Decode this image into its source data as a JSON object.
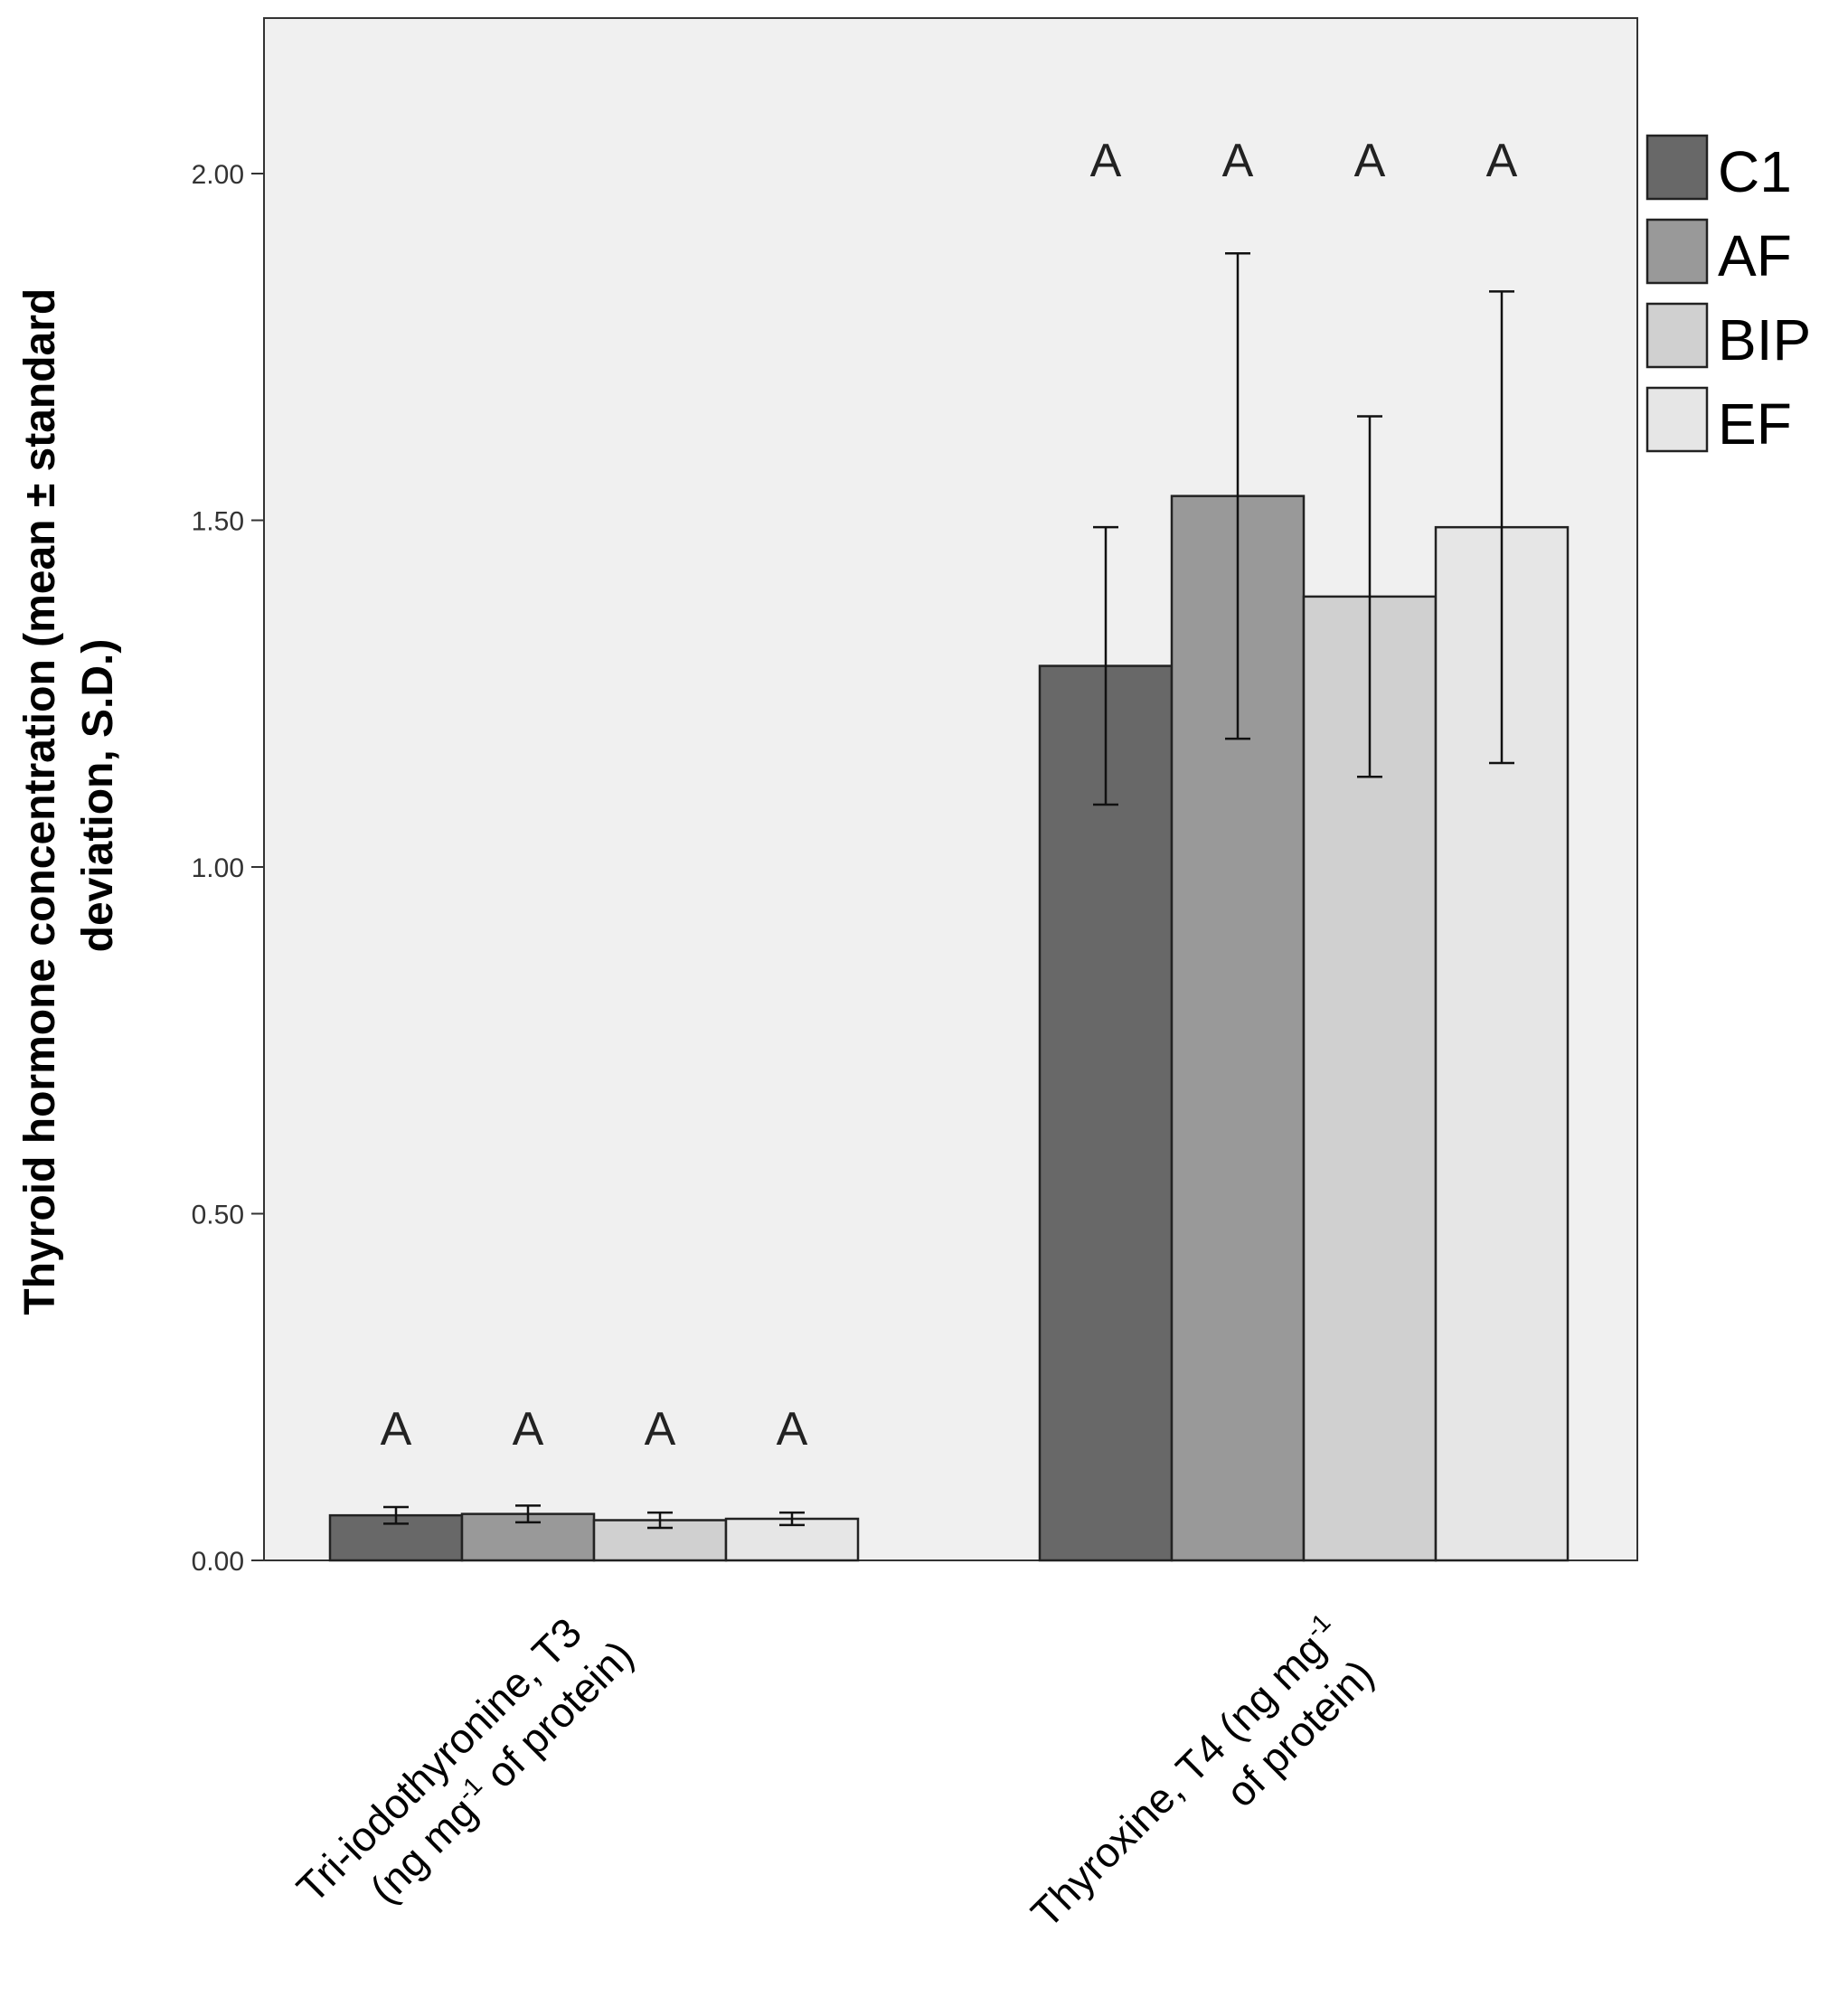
{
  "chart_data": {
    "type": "bar",
    "title": "",
    "ylabel_lines": [
      "Thyroid hormone concentration (mean ± standard",
      "deviation, S.D.)"
    ],
    "ylim": [
      0,
      2.22
    ],
    "yticks": [
      0,
      0.5,
      1.0,
      1.5,
      2.0
    ],
    "ytick_labels": [
      "0.00",
      "0.50",
      "1.00",
      "1.50",
      "2.00"
    ],
    "grid": false,
    "legend_position": "right-top",
    "categories": [
      {
        "name": "Tri-iodothyronine, T3 (ng mg-1 of protein)",
        "line1": "Tri-iodothyronine, T3",
        "line2_pre": "(ng mg",
        "line2_sup": "-1",
        "line2_post": " of protein)"
      },
      {
        "name": "Thyroxine, T4 (ng mg-1 of protein)",
        "line1_pre": "Thyroxine, T4 (ng mg",
        "line1_sup": "-1",
        "line2": "of protein)"
      }
    ],
    "series": [
      {
        "name": "C1",
        "color": "#686868",
        "values": [
          0.065,
          1.29
        ],
        "sd": [
          0.012,
          0.2
        ],
        "letters": [
          "A",
          "A"
        ]
      },
      {
        "name": "AF",
        "color": "#999999",
        "values": [
          0.067,
          1.535
        ],
        "sd": [
          0.012,
          0.35
        ],
        "letters": [
          "A",
          "A"
        ]
      },
      {
        "name": "BIP",
        "color": "#d0d0d0",
        "values": [
          0.058,
          1.39
        ],
        "sd": [
          0.011,
          0.26
        ],
        "letters": [
          "A",
          "A"
        ]
      },
      {
        "name": "EF",
        "color": "#e6e6e6",
        "values": [
          0.06,
          1.49
        ],
        "sd": [
          0.009,
          0.34
        ],
        "letters": [
          "A",
          "A"
        ]
      }
    ]
  }
}
